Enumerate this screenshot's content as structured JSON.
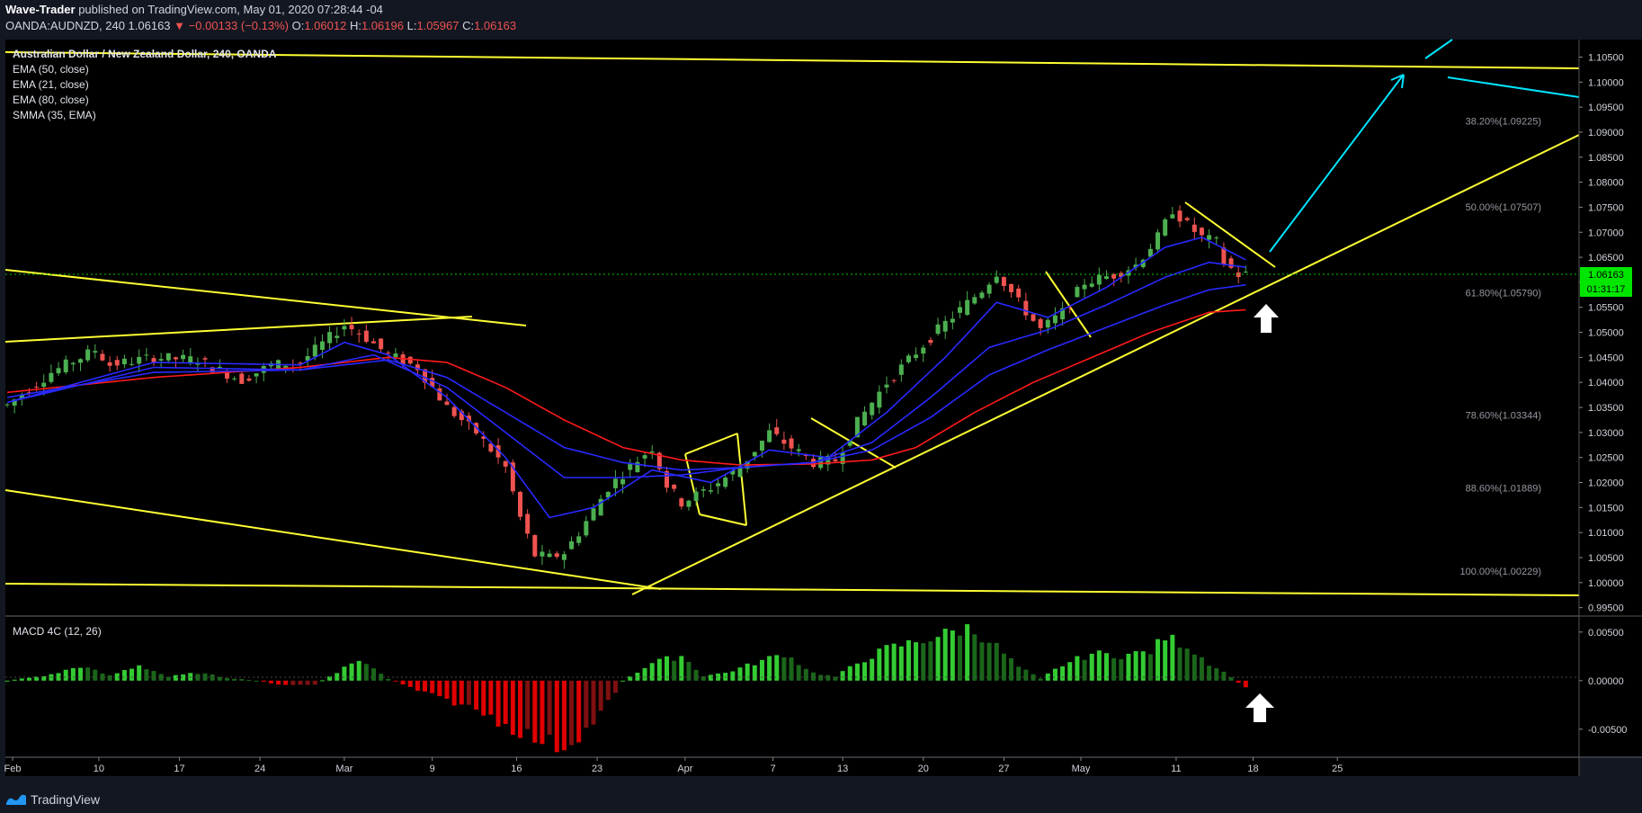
{
  "header": {
    "author": "Wave-Trader",
    "published_text": "published on TradingView.com, May 01, 2020 07:28:44 -04",
    "symbol": "OANDA:AUDNZD, 240",
    "last": "1.06163",
    "change": "−0.00133 (−0.13%)",
    "o_label": "O:",
    "o": "1.06012",
    "h_label": "H:",
    "h": "1.06196",
    "l_label": "L:",
    "l": "1.05967",
    "c_label": "C:",
    "c": "1.06163"
  },
  "legend": [
    "Australian Dollar / New Zealand Dollar, 240, OANDA",
    "EMA (50, close)",
    "EMA (21, close)",
    "EMA (80, close)",
    "SMMA (35, EMA)"
  ],
  "macd_legend": "MACD 4C (12, 26)",
  "footer": {
    "brand": "TradingView"
  },
  "colors": {
    "background": "#000000",
    "bull": "#26a69a",
    "bull_candle": "#4caf50",
    "bear_candle": "#ef5350",
    "ema_blue": "#2929ff",
    "smma_red": "#ff1a1a",
    "trendline": "#ffff33",
    "projection": "#00e5ff",
    "price_tag": "#00e600"
  },
  "price_tag": {
    "value": "1.06163",
    "countdown": "01:31:17"
  },
  "chart_data": [
    {
      "type": "candlestick",
      "title": "Australian Dollar / New Zealand Dollar, 240, OANDA",
      "x_ticks": [
        "Feb",
        "10",
        "17",
        "24",
        "Mar",
        "9",
        "16",
        "23",
        "Apr",
        "7",
        "13",
        "20",
        "27",
        "May",
        "11",
        "18",
        "25"
      ],
      "y_ticks": [
        "1.10500",
        "1.10000",
        "1.09500",
        "1.09000",
        "1.08500",
        "1.08000",
        "1.07500",
        "1.07000",
        "1.06500",
        "1.06000",
        "1.05500",
        "1.05000",
        "1.04500",
        "1.04000",
        "1.03500",
        "1.03000",
        "1.02500",
        "1.02000",
        "1.01500",
        "1.01000",
        "1.00500",
        "1.00000",
        "0.99500"
      ],
      "ylim": [
        0.9935,
        1.1085
      ],
      "price_path": [
        [
          0,
          1.0355
        ],
        [
          6,
          1.042
        ],
        [
          12,
          1.0465
        ],
        [
          14,
          1.0435
        ],
        [
          20,
          1.045
        ],
        [
          26,
          1.0445
        ],
        [
          28,
          1.043
        ],
        [
          32,
          1.0405
        ],
        [
          36,
          1.0435
        ],
        [
          40,
          1.044
        ],
        [
          46,
          1.0515
        ],
        [
          48,
          1.05
        ],
        [
          52,
          1.0455
        ],
        [
          56,
          1.043
        ],
        [
          60,
          1.035
        ],
        [
          64,
          1.03
        ],
        [
          68,
          1.023
        ],
        [
          70,
          1.013
        ],
        [
          72,
          1.0055
        ],
        [
          74,
          1.005
        ],
        [
          76,
          1.006
        ],
        [
          78,
          1.01
        ],
        [
          82,
          1.019
        ],
        [
          86,
          1.0245
        ],
        [
          88,
          1.027
        ],
        [
          90,
          1.0195
        ],
        [
          92,
          1.016
        ],
        [
          96,
          1.019
        ],
        [
          100,
          1.023
        ],
        [
          104,
          1.03
        ],
        [
          106,
          1.028
        ],
        [
          110,
          1.024
        ],
        [
          113,
          1.0245
        ],
        [
          116,
          1.032
        ],
        [
          120,
          1.04
        ],
        [
          124,
          1.046
        ],
        [
          127,
          1.0505
        ],
        [
          130,
          1.0545
        ],
        [
          133,
          1.0585
        ],
        [
          135,
          1.062
        ],
        [
          138,
          1.056
        ],
        [
          141,
          1.0505
        ],
        [
          144,
          1.054
        ],
        [
          147,
          1.06
        ],
        [
          151,
          1.0615
        ],
        [
          154,
          1.0635
        ],
        [
          157,
          1.069
        ],
        [
          159,
          1.0745
        ],
        [
          161,
          1.0715
        ],
        [
          163,
          1.069
        ],
        [
          165,
          1.068
        ],
        [
          166,
          1.064
        ],
        [
          168,
          1.0615
        ],
        [
          169,
          1.0616
        ]
      ],
      "ema21": [
        [
          0,
          1.036
        ],
        [
          20,
          1.044
        ],
        [
          40,
          1.0435
        ],
        [
          46,
          1.048
        ],
        [
          52,
          1.0455
        ],
        [
          60,
          1.037
        ],
        [
          68,
          1.025
        ],
        [
          74,
          1.013
        ],
        [
          80,
          1.015
        ],
        [
          88,
          1.0225
        ],
        [
          96,
          1.02
        ],
        [
          104,
          1.0265
        ],
        [
          112,
          1.025
        ],
        [
          120,
          1.034
        ],
        [
          128,
          1.045
        ],
        [
          135,
          1.056
        ],
        [
          142,
          1.053
        ],
        [
          150,
          1.059
        ],
        [
          158,
          1.067
        ],
        [
          163,
          1.069
        ],
        [
          169,
          1.0645
        ]
      ],
      "ema50": [
        [
          0,
          1.036
        ],
        [
          20,
          1.043
        ],
        [
          40,
          1.0425
        ],
        [
          50,
          1.0455
        ],
        [
          60,
          1.039
        ],
        [
          68,
          1.03
        ],
        [
          76,
          1.021
        ],
        [
          84,
          1.021
        ],
        [
          92,
          1.0215
        ],
        [
          100,
          1.023
        ],
        [
          110,
          1.024
        ],
        [
          118,
          1.028
        ],
        [
          126,
          1.037
        ],
        [
          134,
          1.047
        ],
        [
          142,
          1.0505
        ],
        [
          150,
          1.0555
        ],
        [
          158,
          1.061
        ],
        [
          164,
          1.064
        ],
        [
          169,
          1.063
        ]
      ],
      "ema80": [
        [
          0,
          1.037
        ],
        [
          20,
          1.042
        ],
        [
          40,
          1.0425
        ],
        [
          52,
          1.0445
        ],
        [
          60,
          1.041
        ],
        [
          68,
          1.034
        ],
        [
          76,
          1.027
        ],
        [
          84,
          1.024
        ],
        [
          92,
          1.0225
        ],
        [
          100,
          1.023
        ],
        [
          110,
          1.024
        ],
        [
          118,
          1.0265
        ],
        [
          126,
          1.033
        ],
        [
          134,
          1.0415
        ],
        [
          142,
          1.0465
        ],
        [
          150,
          1.051
        ],
        [
          158,
          1.0555
        ],
        [
          164,
          1.0585
        ],
        [
          169,
          1.0595
        ]
      ],
      "smma35": [
        [
          0,
          1.038
        ],
        [
          20,
          1.041
        ],
        [
          40,
          1.043
        ],
        [
          52,
          1.045
        ],
        [
          60,
          1.044
        ],
        [
          68,
          1.039
        ],
        [
          76,
          1.0325
        ],
        [
          84,
          1.027
        ],
        [
          92,
          1.0245
        ],
        [
          100,
          1.0235
        ],
        [
          110,
          1.0237
        ],
        [
          118,
          1.0245
        ],
        [
          124,
          1.027
        ],
        [
          132,
          1.034
        ],
        [
          140,
          1.04
        ],
        [
          148,
          1.045
        ],
        [
          156,
          1.05
        ],
        [
          164,
          1.054
        ],
        [
          169,
          1.0545
        ]
      ],
      "fibonacci": [
        {
          "label": "38.20%(1.09225)",
          "value": 1.09225
        },
        {
          "label": "50.00%(1.07507)",
          "value": 1.07507
        },
        {
          "label": "61.80%(1.05790)",
          "value": 1.0579
        },
        {
          "label": "78.60%(1.03344)",
          "value": 1.03344
        },
        {
          "label": "88.60%(1.01889)",
          "value": 1.01889
        },
        {
          "label": "100.00%(1.00229)",
          "value": 1.00229
        }
      ],
      "current_price_line": 1.06163
    },
    {
      "type": "bar",
      "title": "MACD 4C (12, 26)",
      "y_ticks": [
        "0.00500",
        "0.00000",
        "-0.00500"
      ],
      "ylim": [
        -0.0077,
        0.006
      ],
      "histogram_path": [
        [
          0,
          0.0
        ],
        [
          6,
          0.0006
        ],
        [
          10,
          0.0015
        ],
        [
          14,
          0.0005
        ],
        [
          18,
          0.0016
        ],
        [
          22,
          0.0004
        ],
        [
          26,
          0.0008
        ],
        [
          30,
          0.0003
        ],
        [
          34,
          0.0
        ],
        [
          38,
          -0.0005
        ],
        [
          42,
          -0.0004
        ],
        [
          48,
          0.0022
        ],
        [
          52,
          0.0002
        ],
        [
          56,
          -0.001
        ],
        [
          60,
          -0.002
        ],
        [
          64,
          -0.003
        ],
        [
          68,
          -0.0045
        ],
        [
          72,
          -0.006
        ],
        [
          76,
          -0.0068
        ],
        [
          80,
          -0.0045
        ],
        [
          84,
          0.0
        ],
        [
          88,
          0.0018
        ],
        [
          92,
          0.0026
        ],
        [
          95,
          0.0005
        ],
        [
          98,
          0.0008
        ],
        [
          102,
          0.0018
        ],
        [
          106,
          0.0028
        ],
        [
          110,
          0.0008
        ],
        [
          113,
          0.0004
        ],
        [
          116,
          0.0018
        ],
        [
          120,
          0.0033
        ],
        [
          124,
          0.004
        ],
        [
          128,
          0.0048
        ],
        [
          131,
          0.0054
        ],
        [
          134,
          0.0042
        ],
        [
          138,
          0.0014
        ],
        [
          141,
          0.0002
        ],
        [
          144,
          0.0016
        ],
        [
          148,
          0.0028
        ],
        [
          152,
          0.0026
        ],
        [
          156,
          0.003
        ],
        [
          158,
          0.0045
        ],
        [
          161,
          0.0036
        ],
        [
          164,
          0.0018
        ],
        [
          167,
          0.0004
        ],
        [
          169,
          -0.0008
        ]
      ]
    }
  ]
}
